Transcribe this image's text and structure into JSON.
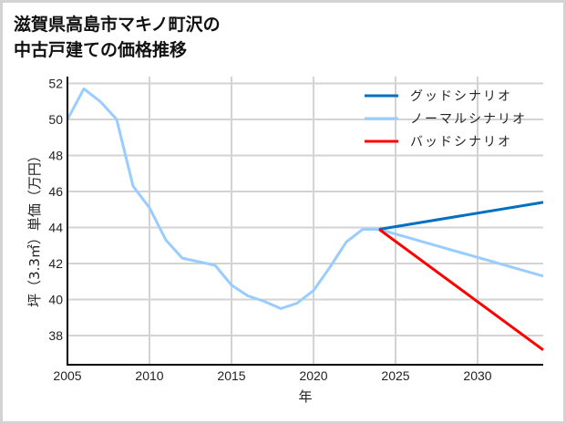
{
  "title": "滋賀県高島市マキノ町沢の\n中古戸建ての価格推移",
  "chart_data": {
    "type": "line",
    "title": "滋賀県高島市マキノ町沢の中古戸建ての価格推移",
    "xlabel": "年",
    "ylabel": "坪（3.3㎡）単価（万円）",
    "xlim": [
      2005,
      2034
    ],
    "ylim": [
      36.4,
      52.5
    ],
    "grid": true,
    "legend_position": "upper right",
    "x_ticks": [
      2005,
      2010,
      2015,
      2020,
      2025,
      2030
    ],
    "y_ticks": [
      38,
      40,
      42,
      44,
      46,
      48,
      50,
      52
    ],
    "series": [
      {
        "name": "グッドシナリオ",
        "color": "#0070c0",
        "x": [
          2024,
          2034
        ],
        "values": [
          43.9,
          45.4
        ]
      },
      {
        "name": "ノーマルシナリオ",
        "color": "#99ccff",
        "x": [
          2005,
          2006,
          2007,
          2008,
          2009,
          2010,
          2011,
          2012,
          2013,
          2014,
          2015,
          2016,
          2017,
          2018,
          2019,
          2020,
          2021,
          2022,
          2023,
          2024,
          2034
        ],
        "values": [
          50.0,
          51.7,
          51.0,
          50.0,
          46.3,
          45.1,
          43.3,
          42.3,
          42.1,
          41.9,
          40.8,
          40.2,
          39.9,
          39.5,
          39.8,
          40.5,
          41.8,
          43.2,
          43.9,
          43.9,
          41.3
        ]
      },
      {
        "name": "バッドシナリオ",
        "color": "#ff0000",
        "x": [
          2024,
          2034
        ],
        "values": [
          43.9,
          37.2
        ]
      }
    ]
  }
}
